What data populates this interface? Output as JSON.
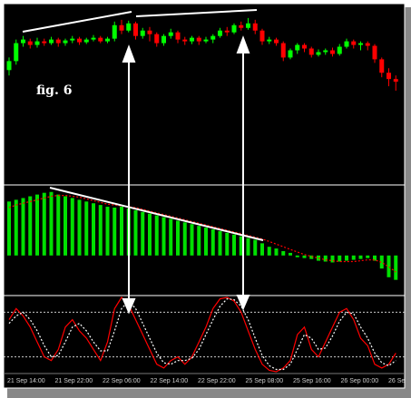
{
  "annotation": "fig. 6",
  "x_labels": [
    "21 Sep 14:00",
    "21 Sep 22:00",
    "22 Sep 06:00",
    "22 Sep 14:00",
    "22 Sep 22:00",
    "25 Sep 08:00",
    "25 Sep 16:00",
    "26 Sep 00:00",
    "26 Se"
  ],
  "chart_data": [
    {
      "type": "candlestick",
      "ylim": [
        0,
        200
      ],
      "up_color": "#00ff00",
      "down_color": "#ff0000",
      "open": [
        128,
        138,
        158,
        160,
        156,
        160,
        158,
        162,
        158,
        161,
        163,
        159,
        162,
        164,
        160,
        163,
        178,
        172,
        180,
        166,
        172,
        168,
        158,
        166,
        170,
        162,
        160,
        164,
        160,
        162,
        166,
        172,
        170,
        178,
        175,
        180,
        172,
        160,
        162,
        158,
        142,
        150,
        156,
        152,
        145,
        148,
        150,
        146,
        154,
        160,
        156,
        158,
        155,
        140,
        125,
        118
      ],
      "close": [
        138,
        158,
        162,
        156,
        160,
        158,
        162,
        158,
        161,
        163,
        159,
        162,
        164,
        160,
        163,
        178,
        172,
        180,
        166,
        172,
        168,
        158,
        166,
        170,
        162,
        160,
        164,
        160,
        162,
        166,
        172,
        170,
        178,
        175,
        180,
        172,
        160,
        162,
        158,
        142,
        150,
        156,
        152,
        145,
        148,
        150,
        146,
        154,
        160,
        156,
        158,
        155,
        140,
        125,
        118,
        115
      ],
      "high": [
        142,
        162,
        166,
        163,
        164,
        163,
        165,
        164,
        163,
        166,
        165,
        164,
        167,
        166,
        165,
        182,
        184,
        183,
        182,
        175,
        176,
        170,
        168,
        174,
        172,
        165,
        166,
        166,
        165,
        168,
        175,
        176,
        180,
        182,
        186,
        184,
        174,
        165,
        164,
        160,
        152,
        158,
        158,
        154,
        151,
        152,
        153,
        157,
        163,
        162,
        160,
        160,
        157,
        142,
        130,
        122
      ],
      "low": [
        122,
        134,
        154,
        152,
        153,
        155,
        156,
        154,
        155,
        158,
        156,
        157,
        160,
        158,
        158,
        160,
        168,
        170,
        162,
        163,
        160,
        154,
        155,
        163,
        158,
        156,
        157,
        156,
        158,
        158,
        164,
        166,
        168,
        172,
        173,
        168,
        156,
        157,
        155,
        138,
        140,
        146,
        148,
        142,
        143,
        145,
        143,
        144,
        152,
        152,
        150,
        150,
        136,
        120,
        110,
        105
      ]
    },
    {
      "type": "bar",
      "ylim": [
        -45,
        80
      ],
      "series": [
        {
          "type": "bar",
          "color": "#00e000",
          "values": [
            62,
            64,
            66,
            68,
            70,
            72,
            73,
            70,
            68,
            66,
            64,
            62,
            60,
            58,
            56,
            55,
            56,
            54,
            52,
            50,
            48,
            46,
            44,
            42,
            40,
            38,
            36,
            34,
            32,
            30,
            28,
            26,
            24,
            22,
            20,
            18,
            14,
            10,
            8,
            5,
            3,
            -2,
            -3,
            -4,
            -6,
            -7,
            -8,
            -7,
            -6,
            -5,
            -4,
            -3,
            -6,
            -15,
            -25,
            -28
          ]
        },
        {
          "type": "line",
          "color": "#ff0000",
          "dashed": true,
          "values": [
            55,
            58,
            60,
            62,
            64,
            66,
            68,
            69,
            69,
            68,
            67,
            65,
            63,
            61,
            59,
            58,
            57,
            56,
            55,
            53,
            51,
            49,
            47,
            45,
            43,
            41,
            39,
            37,
            35,
            33,
            31,
            29,
            27,
            25,
            23,
            21,
            19,
            16,
            13,
            10,
            7,
            4,
            1,
            -1,
            -3,
            -5,
            -6,
            -7,
            -7,
            -7,
            -6,
            -5,
            -5,
            -8,
            -13,
            -19
          ]
        }
      ]
    },
    {
      "type": "line",
      "ylim": [
        0,
        100
      ],
      "levels": [
        80,
        20
      ],
      "series": [
        {
          "color": "#ff0000",
          "dashed": false,
          "values": [
            70,
            85,
            75,
            60,
            40,
            20,
            15,
            30,
            60,
            70,
            55,
            45,
            30,
            15,
            40,
            85,
            100,
            90,
            70,
            50,
            30,
            10,
            5,
            15,
            20,
            10,
            20,
            40,
            60,
            85,
            98,
            100,
            95,
            80,
            55,
            30,
            10,
            2,
            0,
            5,
            15,
            50,
            60,
            30,
            20,
            40,
            60,
            80,
            85,
            70,
            45,
            35,
            10,
            5,
            10,
            25
          ]
        },
        {
          "color": "#ffffff",
          "dashed": true,
          "values": [
            65,
            75,
            80,
            70,
            55,
            35,
            20,
            22,
            40,
            60,
            65,
            55,
            40,
            28,
            28,
            55,
            85,
            95,
            85,
            65,
            45,
            25,
            12,
            10,
            15,
            15,
            18,
            30,
            50,
            70,
            88,
            98,
            97,
            88,
            70,
            45,
            22,
            8,
            3,
            3,
            10,
            30,
            50,
            45,
            30,
            32,
            48,
            68,
            80,
            78,
            60,
            45,
            25,
            12,
            8,
            15
          ]
        }
      ]
    }
  ]
}
